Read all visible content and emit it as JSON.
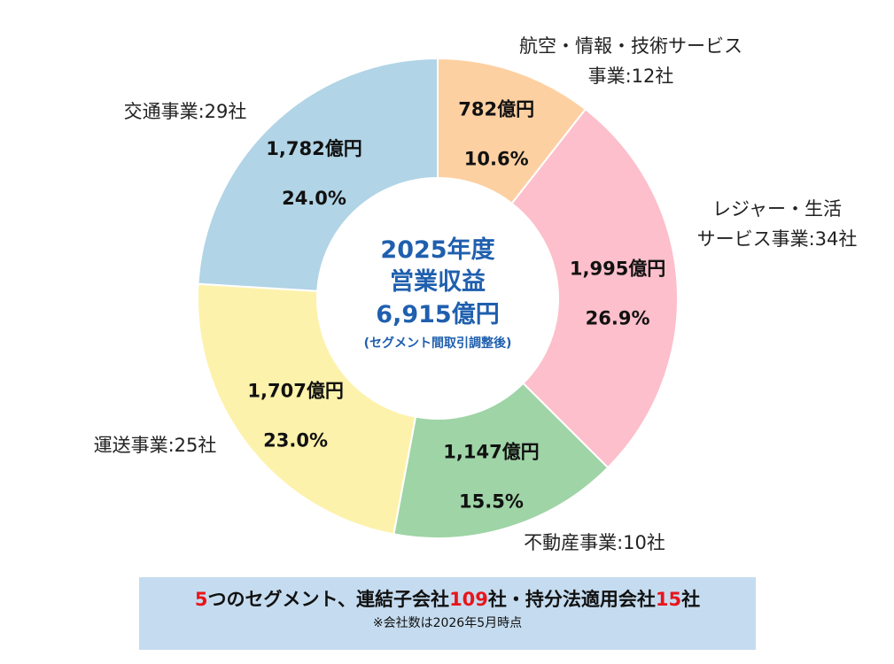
{
  "chart_data": {
    "type": "donut",
    "series": [
      {
        "segment_lines": [
          "航空・情報・技術サービス",
          "事業:12社"
        ],
        "value_label": "782億円",
        "percent_label": "10.6%",
        "value": 782,
        "percent": 10.6,
        "color": "#fdd0a2"
      },
      {
        "segment_lines": [
          "レジャー・生活",
          "サービス事業:34社"
        ],
        "value_label": "1,995億円",
        "percent_label": "26.9%",
        "value": 1995,
        "percent": 26.9,
        "color": "#fcbfcb"
      },
      {
        "segment_lines": [
          "不動産事業:10社"
        ],
        "value_label": "1,147億円",
        "percent_label": "15.5%",
        "value": 1147,
        "percent": 15.5,
        "color": "#9fd4a6"
      },
      {
        "segment_lines": [
          "運送事業:25社"
        ],
        "value_label": "1,707億円",
        "percent_label": "23.0%",
        "value": 1707,
        "percent": 23.0,
        "color": "#fdf2ab"
      },
      {
        "segment_lines": [
          "交通事業:29社"
        ],
        "value_label": "1,782億円",
        "percent_label": "24.0%",
        "value": 1782,
        "percent": 24.0,
        "color": "#b1d4e6"
      }
    ],
    "center": {
      "line1": "2025年度",
      "line2": "営業収益",
      "line3": "6,915億円",
      "sub": "(セグメント間取引調整後)",
      "color": "#1f5fae"
    }
  },
  "footer": {
    "count_segments": "5",
    "text1": "つのセグメント、連結子会社",
    "count_subsidiaries": "109",
    "text2": "社・持分法適用会社",
    "count_equity": "15",
    "text3": "社",
    "note": "※会社数は2026年5月時点",
    "background": "#c5dcf0",
    "highlight_color": "#e8151b"
  }
}
